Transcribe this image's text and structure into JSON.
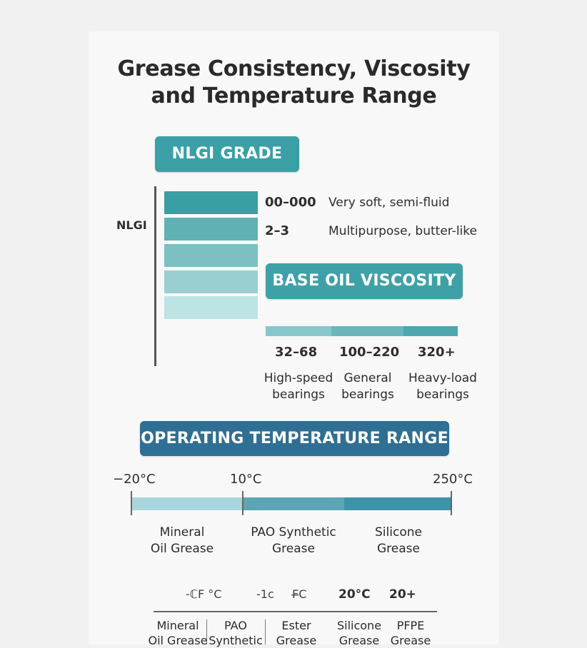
{
  "title": {
    "line1": "Grease Consistency, Viscosity",
    "line2": "and Temperature Range"
  },
  "nlgi": {
    "header": "NLGI GRADE",
    "axis_label": "NLGI",
    "bar_colors": [
      "#3a9fa2",
      "#5fb1b3",
      "#7cc0c2",
      "#99cfd1",
      "#bde4e5"
    ],
    "rows": [
      {
        "grade": "00–000",
        "desc": "Very soft, semi-fluid"
      },
      {
        "grade": "2–3",
        "desc": "Multipurpose, butter-like"
      }
    ]
  },
  "viscosity": {
    "header": "BASE OIL VISCOSITY",
    "colors": [
      "#86c7cb",
      "#6ab6bb",
      "#4ea7ae"
    ],
    "ranges": [
      {
        "value": "32–68",
        "line1": "High-speed",
        "line2": "bearings"
      },
      {
        "value": "100–220",
        "line1": "General",
        "line2": "bearings"
      },
      {
        "value": "320+",
        "line1": "Heavy-load",
        "line2": "bearings"
      }
    ]
  },
  "temperature": {
    "header": "OPERATING TEMPERATURE RANGE",
    "ticks": [
      "−20°C",
      "10°C",
      "250°C"
    ],
    "colors": [
      "#a9d6dc",
      "#5ba5b4",
      "#3d93aa"
    ],
    "segments": [
      {
        "line1": "Mineral",
        "line2": "Oil Grease"
      },
      {
        "line1": "PAO Synthetic",
        "line2": "Grease"
      },
      {
        "line1": "Silicone",
        "line2": "Grease"
      }
    ]
  },
  "bottom": {
    "values": [
      "-ℂF °C",
      "-1c",
      "F̶C",
      "20°C",
      "20+"
    ],
    "columns": [
      {
        "line1": "Mineral",
        "line2": "Oil Grease"
      },
      {
        "line1": "PAO",
        "line2": "Synthetic"
      },
      {
        "line1": "Ester",
        "line2": "Grease"
      },
      {
        "line1": "Silicone",
        "line2": "Grease"
      },
      {
        "line1": "PFPE",
        "line2": "Grease"
      }
    ]
  }
}
